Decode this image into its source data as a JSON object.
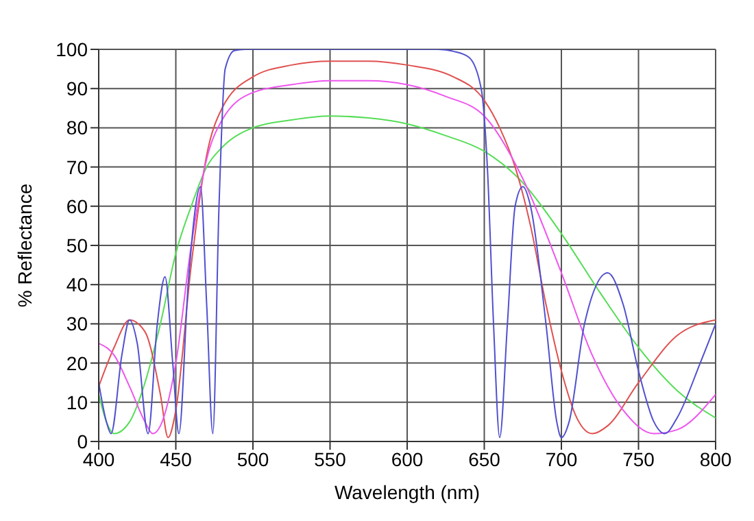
{
  "chart_data": {
    "type": "line",
    "xlabel": "Wavelength (nm)",
    "ylabel": "% Reflectance",
    "xlim": [
      400,
      800
    ],
    "xticks": [
      400,
      450,
      500,
      550,
      600,
      650,
      700,
      750,
      800
    ],
    "ylim": [
      0,
      100
    ],
    "yticks": [
      0,
      10,
      20,
      30,
      40,
      50,
      60,
      70,
      80,
      90,
      100
    ],
    "grid": true,
    "legend": false,
    "marker": "none",
    "line_style": "solid",
    "series": [
      {
        "color": "#55dd55",
        "x": [
          400,
          405,
          410,
          420,
          430,
          440,
          450,
          460,
          470,
          480,
          500,
          525,
          550,
          575,
          600,
          625,
          650,
          675,
          700,
          725,
          750,
          775,
          800
        ],
        "values": [
          12,
          5,
          2,
          5,
          15,
          30,
          48,
          60,
          70,
          75,
          80,
          82,
          83,
          82.5,
          81,
          78,
          74,
          66,
          53,
          38,
          24,
          13,
          6
        ]
      },
      {
        "color": "#e05050",
        "x": [
          400,
          410,
          420,
          430,
          440,
          445,
          450,
          460,
          470,
          480,
          500,
          525,
          550,
          575,
          600,
          630,
          650,
          660,
          670,
          680,
          690,
          700,
          710,
          720,
          730,
          750,
          775,
          800
        ],
        "values": [
          14,
          24,
          31,
          28,
          12,
          1,
          8,
          45,
          73,
          85,
          93,
          96,
          97,
          97,
          96,
          93,
          87,
          80,
          70,
          55,
          35,
          18,
          6,
          2,
          4,
          15,
          27,
          31
        ]
      },
      {
        "color": "#ee55ee",
        "x": [
          400,
          410,
          420,
          430,
          435,
          440,
          450,
          460,
          470,
          480,
          500,
          525,
          550,
          575,
          600,
          625,
          650,
          675,
          700,
          720,
          740,
          760,
          775,
          800
        ],
        "values": [
          25,
          22,
          14,
          5,
          2,
          4,
          20,
          50,
          72,
          82,
          89,
          91,
          92,
          92,
          91,
          88,
          83,
          67,
          43,
          22,
          8,
          2,
          3,
          12
        ]
      },
      {
        "color": "#5050d0",
        "x": [
          400,
          405,
          408,
          415,
          420,
          425,
          432,
          438,
          443,
          448,
          452,
          458,
          466,
          470,
          474,
          478,
          482,
          488,
          495,
          620,
          630,
          640,
          648,
          652,
          656,
          660,
          665,
          670,
          675,
          680,
          690,
          697,
          700,
          705,
          715,
          730,
          740,
          750,
          760,
          767,
          775,
          790,
          800
        ],
        "values": [
          15,
          5,
          2,
          22,
          31,
          25,
          2,
          30,
          42,
          20,
          2,
          40,
          65,
          35,
          2,
          60,
          95,
          99.7,
          100,
          100,
          99.5,
          98,
          90,
          70,
          30,
          1,
          30,
          60,
          65,
          60,
          30,
          5,
          1,
          5,
          30,
          43,
          35,
          18,
          5,
          2,
          6,
          20,
          30
        ]
      }
    ]
  }
}
